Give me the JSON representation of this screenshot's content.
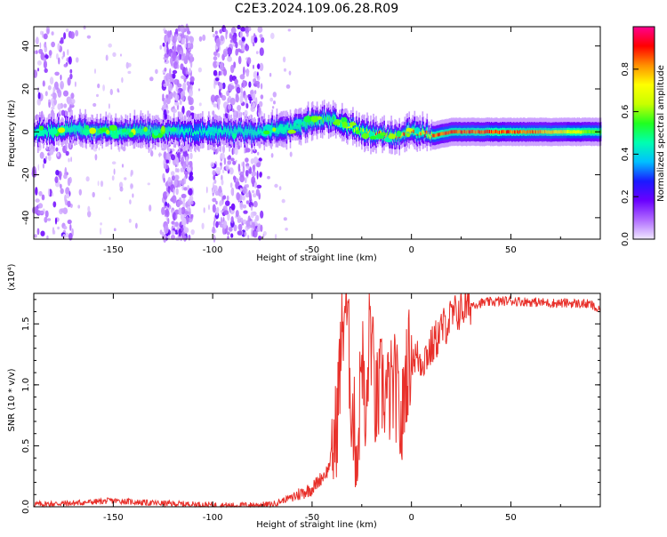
{
  "figure_title": "C2E3.2024.109.06.28.R09",
  "chart_data": [
    {
      "type": "heatmap",
      "title": "C2E3.2024.109.06.28.R09",
      "xlabel": "Height of straight line (km)",
      "ylabel": "Frequency (Hz)",
      "xlim": [
        -190,
        95
      ],
      "ylim": [
        -50,
        49
      ],
      "x_ticks": [
        "-150",
        "-100",
        "-50",
        "0",
        "50"
      ],
      "y_ticks": [
        "-40",
        "-20",
        "0",
        "20",
        "40"
      ],
      "colorbar": {
        "label": "Normalized spectral amplitude",
        "range": [
          0.0,
          1.0
        ],
        "ticks": [
          "0.0",
          "0.2",
          "0.4",
          "0.6",
          "0.8"
        ],
        "colormap": [
          "#f0e8ff",
          "#b06bff",
          "#6a00ff",
          "#1a1aff",
          "#00c0ff",
          "#00ffb0",
          "#20ff20",
          "#c8ff00",
          "#ffff00",
          "#ff9000",
          "#ff0000",
          "#ff0090"
        ]
      },
      "band_center": [
        [
          -190,
          0
        ],
        [
          -170,
          1
        ],
        [
          -150,
          0
        ],
        [
          -130,
          0
        ],
        [
          -110,
          0
        ],
        [
          -100,
          0
        ],
        [
          -75,
          0
        ],
        [
          -60,
          2
        ],
        [
          -50,
          5
        ],
        [
          -42,
          6
        ],
        [
          -35,
          4
        ],
        [
          -28,
          1
        ],
        [
          -20,
          -1
        ],
        [
          -10,
          -2
        ],
        [
          0,
          0
        ],
        [
          5,
          0
        ],
        [
          10,
          -2
        ],
        [
          20,
          0
        ],
        [
          95,
          0
        ]
      ],
      "band_peak_amplitude": [
        [
          -190,
          0.45
        ],
        [
          -150,
          0.55
        ],
        [
          -130,
          0.5
        ],
        [
          -110,
          0.3
        ],
        [
          -100,
          0.4
        ],
        [
          -75,
          0.4
        ],
        [
          -60,
          0.5
        ],
        [
          -45,
          0.6
        ],
        [
          -30,
          0.7
        ],
        [
          -20,
          0.9
        ],
        [
          -10,
          0.95
        ],
        [
          0,
          0.95
        ],
        [
          20,
          0.95
        ],
        [
          60,
          0.9
        ],
        [
          95,
          0.6
        ]
      ],
      "noise_regions_km": [
        [
          -190,
          -170
        ],
        [
          -125,
          -110
        ],
        [
          -100,
          -75
        ]
      ]
    },
    {
      "type": "line",
      "xlabel": "Height of straight line (km)",
      "ylabel": "SNR (10 * v/v)",
      "y_multiplier": "(x10⁴)",
      "xlim": [
        -190,
        95
      ],
      "ylim": [
        0.0,
        1.75
      ],
      "x_ticks": [
        "-150",
        "-100",
        "-50",
        "0",
        "50"
      ],
      "y_ticks": [
        "0.0",
        "0.5",
        "1.0",
        "1.5"
      ],
      "series": [
        {
          "color": "#e8302a",
          "points": [
            [
              -190,
              0.02
            ],
            [
              -170,
              0.03
            ],
            [
              -150,
              0.05
            ],
            [
              -130,
              0.03
            ],
            [
              -110,
              0.02
            ],
            [
              -90,
              0.01
            ],
            [
              -70,
              0.02
            ],
            [
              -60,
              0.08
            ],
            [
              -50,
              0.15
            ],
            [
              -42,
              0.3
            ],
            [
              -38,
              0.6
            ],
            [
              -35,
              1.4
            ],
            [
              -33,
              1.75
            ],
            [
              -30,
              0.8
            ],
            [
              -27,
              0.4
            ],
            [
              -25,
              1.4
            ],
            [
              -23,
              0.5
            ],
            [
              -21,
              1.6
            ],
            [
              -18,
              0.8
            ],
            [
              -15,
              1.0
            ],
            [
              -12,
              0.9
            ],
            [
              -8,
              1.0
            ],
            [
              -5,
              0.6
            ],
            [
              -3,
              1.1
            ],
            [
              0,
              1.25
            ],
            [
              5,
              1.2
            ],
            [
              10,
              1.3
            ],
            [
              15,
              1.45
            ],
            [
              20,
              1.55
            ],
            [
              25,
              1.62
            ],
            [
              30,
              1.66
            ],
            [
              40,
              1.68
            ],
            [
              50,
              1.69
            ],
            [
              60,
              1.68
            ],
            [
              70,
              1.67
            ],
            [
              80,
              1.67
            ],
            [
              90,
              1.66
            ],
            [
              95,
              1.6
            ]
          ]
        }
      ]
    }
  ]
}
